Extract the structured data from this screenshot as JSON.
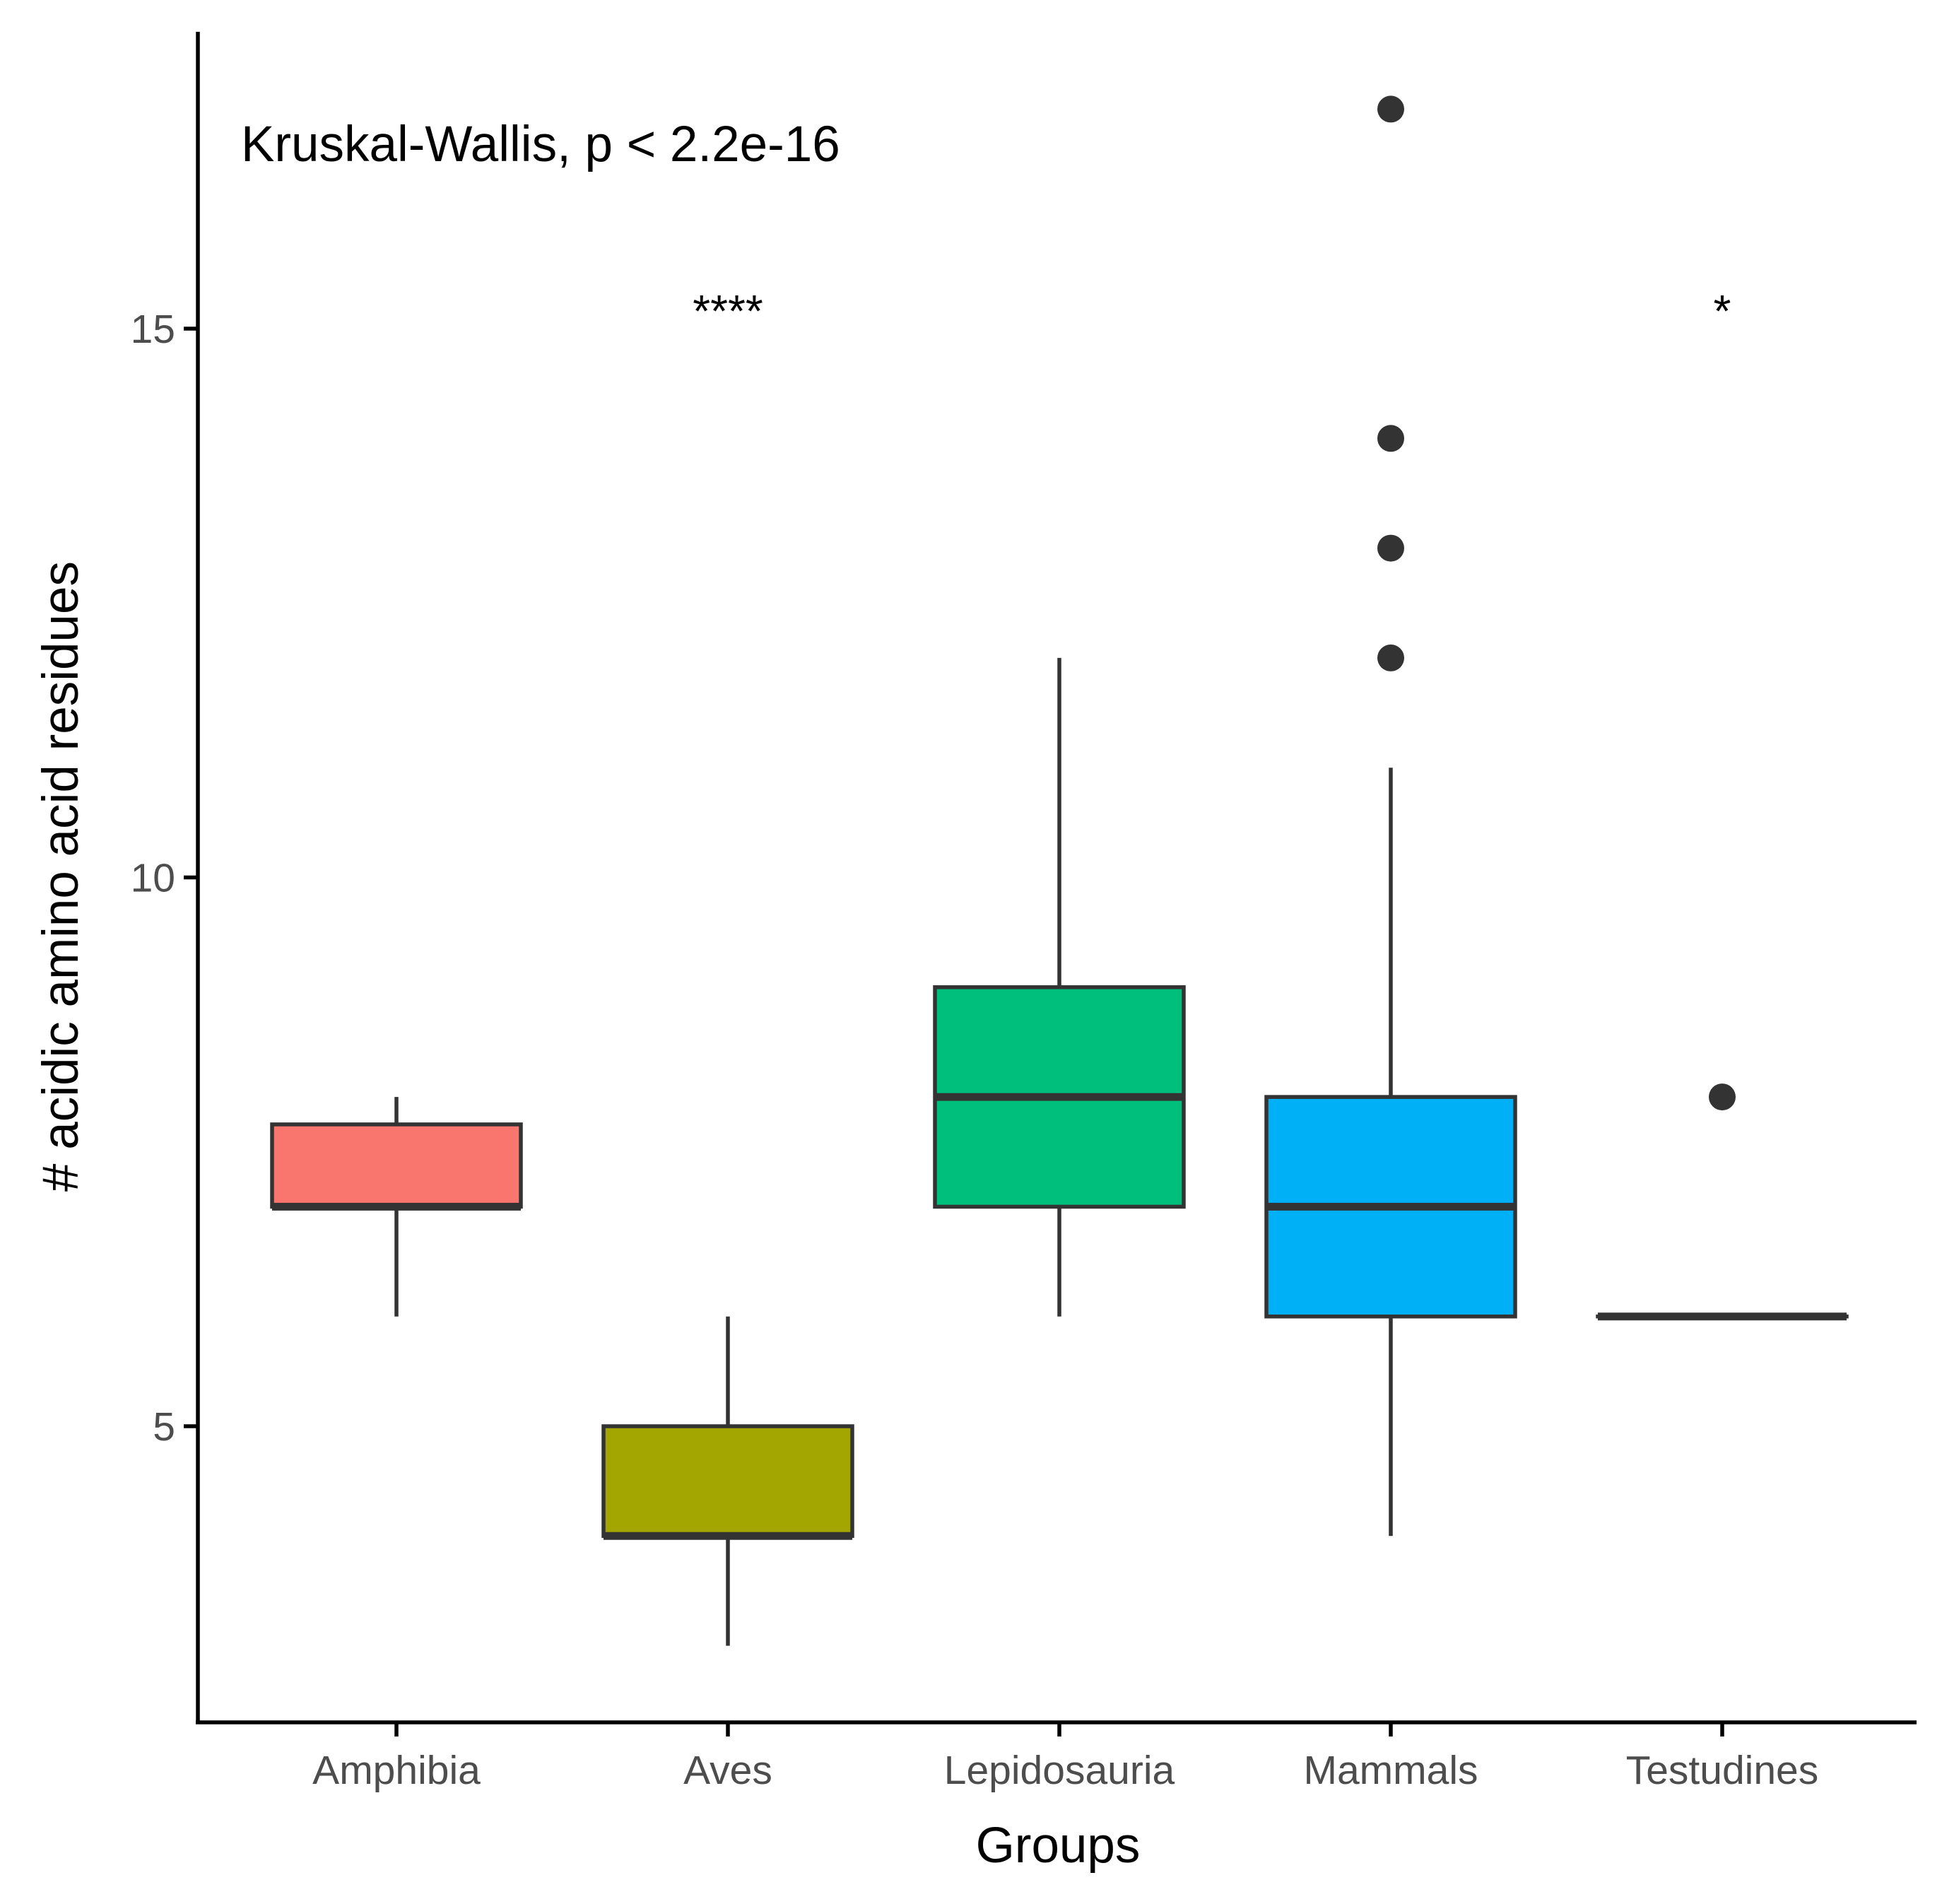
{
  "chart_data": {
    "type": "boxplot",
    "title": "",
    "annotation": "Kruskal-Wallis, p < 2.2e-16",
    "xlabel": "Groups",
    "ylabel": "# acidic amino acid residues",
    "ylim": [
      2.5,
      18
    ],
    "yticks": [
      5,
      10,
      15
    ],
    "grid": false,
    "legend": "none",
    "box_edge_color": "#333333",
    "categories": [
      "Amphibia",
      "Aves",
      "Lepidosauria",
      "Mammals",
      "Testudines"
    ],
    "boxes": [
      {
        "group": "Amphibia",
        "color": "#F8766D",
        "lower_whisker": 6,
        "q1": 7,
        "median": 7,
        "q3": 7.75,
        "upper_whisker": 8,
        "outliers": [],
        "significance": ""
      },
      {
        "group": "Aves",
        "color": "#A3A500",
        "lower_whisker": 3,
        "q1": 4,
        "median": 4,
        "q3": 5,
        "upper_whisker": 6,
        "outliers": [],
        "significance": "****"
      },
      {
        "group": "Lepidosauria",
        "color": "#00BF7D",
        "lower_whisker": 6,
        "q1": 7,
        "median": 8,
        "q3": 9,
        "upper_whisker": 12,
        "outliers": [],
        "significance": ""
      },
      {
        "group": "Mammals",
        "color": "#00B0F6",
        "lower_whisker": 4,
        "q1": 6,
        "median": 7,
        "q3": 8,
        "upper_whisker": 11,
        "outliers": [
          12,
          13,
          14,
          17
        ],
        "significance": ""
      },
      {
        "group": "Testudines",
        "color": "#E76BF3",
        "lower_whisker": 6,
        "q1": 6,
        "median": 6,
        "q3": 6,
        "upper_whisker": 6,
        "outliers": [
          8
        ],
        "significance": "*"
      }
    ],
    "significance_y": 15.2
  }
}
